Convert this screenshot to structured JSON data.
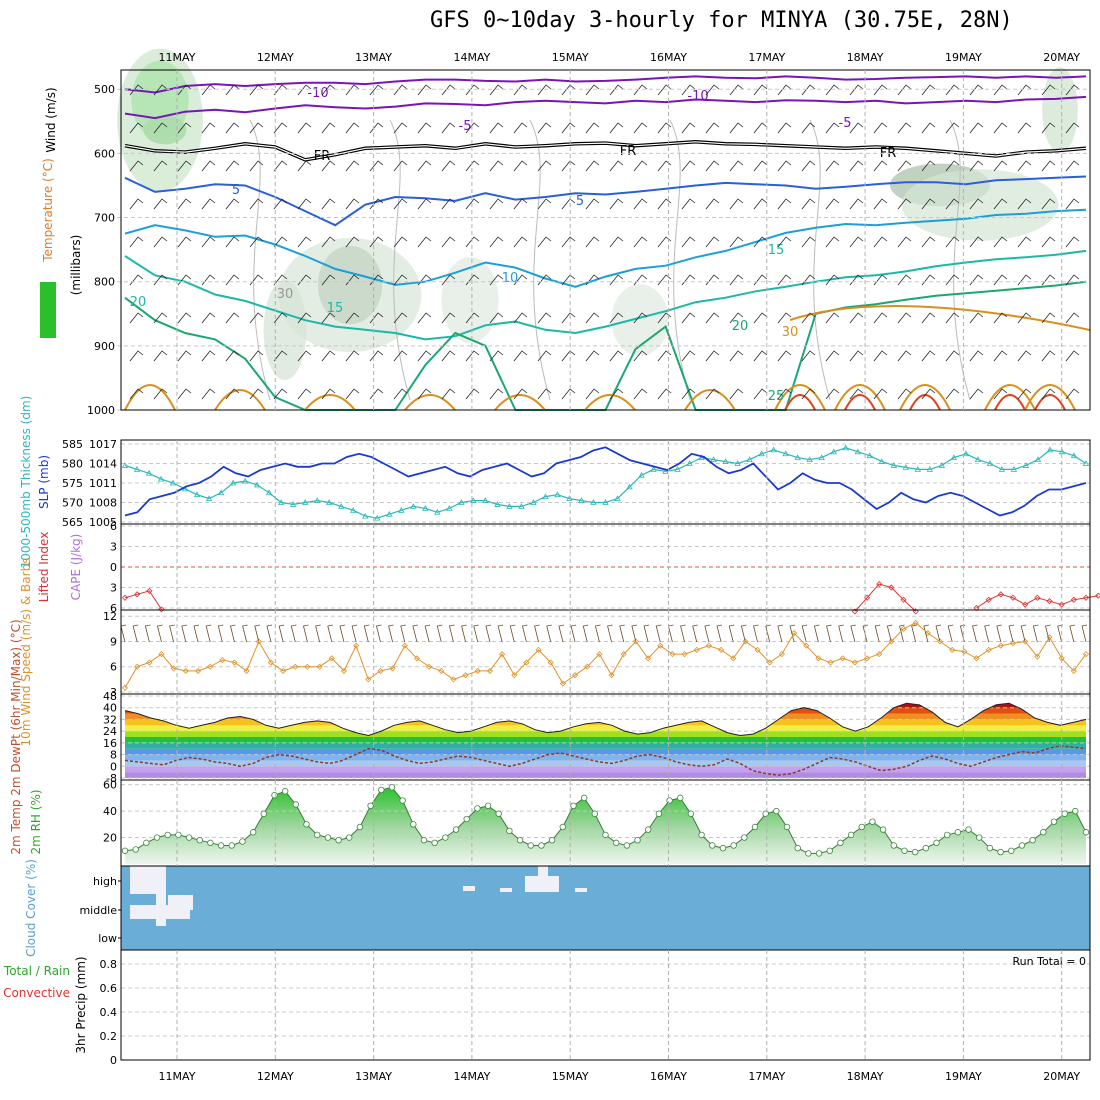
{
  "title": "GFS 0~10day 3-hourly for MINYA (30.75E, 28N)",
  "date_labels": [
    "11MAY",
    "12MAY",
    "13MAY",
    "14MAY",
    "15MAY",
    "16MAY",
    "17MAY",
    "18MAY",
    "19MAY",
    "20MAY"
  ],
  "colors": {
    "temp_10": "#7a14b8",
    "temp_5": "#7a14b8",
    "fr": "#000000",
    "temp5": "#2a5fd8",
    "temp10": "#1aa0d8",
    "temp15": "#1ab8a8",
    "temp20": "#1aa870",
    "temp25": "#d8901a",
    "temp30": "#e0401a",
    "rh": "#2bbf2b",
    "thickness": "#2ab8b8",
    "slp": "#1a3ad0",
    "lifted": "#e03030",
    "wind": "#e0922a",
    "cloud": "#6aadd6",
    "rh2m": "#2aa82a"
  },
  "chart_data": [
    {
      "panel": "upper_air",
      "type": "contour",
      "ylabel_parts": [
        "Wind (m/s)",
        "Temperature (°C)",
        "RH (%)",
        "(millibars)"
      ],
      "y_ticks": [
        500,
        600,
        700,
        800,
        900,
        1000
      ],
      "ylim": [
        470,
        1000
      ],
      "contour_labels": [
        "-10",
        "-10",
        "-5",
        "-5",
        "FR",
        "FR",
        "FR",
        "5",
        "5",
        "10",
        "15",
        "15",
        "20",
        "20",
        "25",
        "30",
        "30"
      ],
      "isotherms": [
        {
          "label": "-10",
          "color": "temp_10",
          "p": [
            500,
            505,
            495,
            492,
            495,
            492,
            490,
            490,
            492,
            488,
            485,
            485,
            487,
            488,
            485,
            488,
            487,
            485,
            482,
            480,
            482,
            483,
            480,
            482,
            485,
            484,
            482,
            481,
            480,
            482,
            480,
            482,
            480
          ]
        },
        {
          "label": "-5",
          "color": "temp_5",
          "p": [
            538,
            545,
            535,
            532,
            536,
            530,
            525,
            528,
            530,
            527,
            522,
            523,
            525,
            520,
            518,
            520,
            522,
            518,
            520,
            516,
            518,
            520,
            517,
            518,
            520,
            518,
            522,
            520,
            518,
            520,
            516,
            515,
            512
          ]
        },
        {
          "label": "FR",
          "color": "fr",
          "p": [
            588,
            596,
            598,
            592,
            585,
            590,
            610,
            602,
            592,
            590,
            588,
            592,
            585,
            590,
            588,
            585,
            584,
            588,
            585,
            582,
            585,
            586,
            588,
            590,
            592,
            590,
            592,
            596,
            600,
            604,
            598,
            596,
            592
          ]
        },
        {
          "label": "5",
          "color": "temp5",
          "p": [
            638,
            660,
            655,
            648,
            650,
            668,
            690,
            712,
            680,
            668,
            670,
            674,
            662,
            672,
            668,
            662,
            664,
            660,
            655,
            650,
            646,
            648,
            650,
            655,
            652,
            648,
            645,
            645,
            648,
            642,
            640,
            638,
            636
          ]
        },
        {
          "label": "10",
          "color": "temp10",
          "p": [
            725,
            712,
            720,
            730,
            728,
            742,
            760,
            780,
            792,
            805,
            800,
            786,
            770,
            778,
            795,
            808,
            792,
            780,
            775,
            762,
            752,
            738,
            724,
            716,
            710,
            712,
            708,
            705,
            702,
            696,
            694,
            690,
            688
          ]
        },
        {
          "label": "15",
          "color": "temp15",
          "p": [
            760,
            790,
            800,
            820,
            830,
            845,
            860,
            870,
            875,
            880,
            890,
            885,
            868,
            862,
            875,
            880,
            870,
            858,
            846,
            832,
            825,
            815,
            808,
            800,
            793,
            790,
            784,
            776,
            770,
            765,
            762,
            758,
            752
          ]
        },
        {
          "label": "20",
          "color": "temp20",
          "p": [
            825,
            860,
            880,
            890,
            920,
            980,
            1000,
            1000,
            1000,
            1000,
            930,
            880,
            900,
            1000,
            1000,
            1000,
            1000,
            905,
            870,
            1000,
            1000,
            1000,
            1000,
            850,
            840,
            835,
            828,
            822,
            818,
            814,
            810,
            806,
            800
          ]
        }
      ],
      "rh_contour_labels": [
        "30",
        "30",
        "30"
      ]
    },
    {
      "panel": "thickness_slp",
      "type": "line",
      "ylabel_left": "1000-500mb Thickness (dm)",
      "ylabel_right": "SLP (mb)",
      "ticks_left": [
        565,
        570,
        575,
        580,
        585
      ],
      "ticks_right": [
        1005,
        1008,
        1011,
        1014,
        1017
      ],
      "ylim_left": [
        565,
        585
      ],
      "ylim_right": [
        1005,
        1017
      ],
      "series": [
        {
          "name": "1000-500mb Thickness (dm)",
          "color": "thickness",
          "values": [
            579.5,
            578.5,
            577.5,
            576,
            575,
            573.5,
            572,
            571,
            572.5,
            575,
            575.5,
            574.5,
            572.5,
            570,
            569.5,
            570,
            570.5,
            570,
            569,
            568,
            566.5,
            566,
            567,
            568,
            569,
            568.5,
            567.5,
            568.5,
            570,
            570.5,
            570.5,
            569.5,
            569,
            569,
            570,
            571.5,
            572,
            571,
            570.5,
            570,
            570,
            571,
            574,
            577,
            578.5,
            578,
            578.5,
            580,
            581.5,
            581,
            580.5,
            580,
            581,
            582.5,
            583.5,
            582.5,
            581.5,
            581,
            581.5,
            583,
            584,
            583,
            582,
            580.5,
            579.5,
            579,
            578.5,
            578.5,
            579.5,
            581.5,
            582.5,
            581,
            580,
            578.5,
            578.5,
            579.5,
            581,
            583.5,
            583,
            582,
            580
          ]
        },
        {
          "name": "SLP (mb)",
          "color": "slp",
          "values": [
            1006,
            1006.5,
            1008.5,
            1009,
            1009.5,
            1010.5,
            1011,
            1012,
            1013.5,
            1012.5,
            1012,
            1013,
            1013.5,
            1014,
            1013.5,
            1013.5,
            1014,
            1014,
            1015,
            1015.5,
            1015,
            1014,
            1013,
            1012,
            1012.5,
            1013,
            1013.5,
            1012.5,
            1012,
            1013,
            1013.5,
            1014,
            1013,
            1012,
            1012.5,
            1014,
            1014.5,
            1015,
            1016,
            1016.5,
            1015.5,
            1014.5,
            1014,
            1013.5,
            1013,
            1014,
            1015.5,
            1015,
            1013.5,
            1012.5,
            1013,
            1014,
            1012,
            1010,
            1011,
            1012.5,
            1011.5,
            1011,
            1011,
            1010,
            1008.5,
            1007,
            1008,
            1009.5,
            1008.5,
            1008,
            1009,
            1009.5,
            1009,
            1008,
            1007,
            1006,
            1006.5,
            1007.5,
            1009,
            1010,
            1010,
            1010.5,
            1011
          ]
        }
      ]
    },
    {
      "panel": "stability",
      "type": "line",
      "ylabel_left": "Lifted Index",
      "ylabel_right": "CAPE (J/kg)",
      "ticks": [
        -6,
        -3,
        0,
        3,
        6
      ],
      "ylim": [
        -6,
        6
      ],
      "series": [
        {
          "name": "Lifted Index",
          "color": "lifted",
          "segments": [
            {
              "x_start": 0,
              "values": [
                4.5,
                4.0,
                3.5,
                6.2
              ]
            },
            {
              "x_start": 60,
              "values": [
                6.5,
                4.5,
                2.5,
                3.0,
                4.8,
                6.5
              ]
            },
            {
              "x_start": 70,
              "values": [
                6.0,
                4.8,
                4.0,
                4.5,
                5.5,
                4.5,
                5.0,
                5.5,
                4.8,
                4.5,
                4.2
              ]
            }
          ]
        }
      ]
    },
    {
      "panel": "wind10m",
      "type": "line",
      "ylabel": "10m Wind Speed (m/s) & Barbs",
      "ticks": [
        3,
        6,
        9,
        12
      ],
      "ylim": [
        3,
        12.5
      ],
      "series": [
        {
          "name": "10m Wind Speed",
          "color": "wind",
          "values": [
            3.5,
            6,
            6.5,
            7.5,
            5.8,
            5.5,
            5.5,
            6,
            6.8,
            6.5,
            5.5,
            9,
            6.5,
            5.5,
            6,
            6,
            6,
            7,
            5.5,
            8.5,
            4.5,
            5.5,
            5.8,
            8.5,
            7,
            6,
            5.5,
            4.5,
            5,
            5.5,
            5.5,
            7.5,
            5,
            6.5,
            8,
            6.5,
            4,
            5,
            6,
            7.5,
            5,
            7.5,
            9,
            7,
            8.5,
            7.5,
            7.5,
            8,
            8.5,
            8,
            7,
            9,
            8,
            6.5,
            7.5,
            10,
            8.5,
            7,
            6.5,
            7,
            6.5,
            7,
            7.5,
            9,
            10.5,
            11.2,
            10,
            9,
            8,
            7.8,
            7,
            8,
            8.5,
            8.8,
            9,
            7.2,
            9.5,
            7,
            5.5,
            7.5
          ]
        }
      ]
    },
    {
      "panel": "temp2m",
      "type": "area",
      "ylabel": "2m Temp 2m DewPt (6hr Min/Max) (°C)",
      "ticks": [
        -8,
        0,
        8,
        16,
        24,
        32,
        40,
        48
      ],
      "ylim": [
        -8,
        48
      ],
      "series": [
        {
          "name": "2m Temp",
          "values": [
            38,
            36,
            33,
            31,
            28,
            26,
            28,
            30,
            33,
            34,
            32,
            28,
            26,
            28,
            30,
            31,
            30,
            26,
            23,
            21,
            24,
            28,
            30,
            31,
            28,
            25,
            23,
            24,
            27,
            30,
            31,
            29,
            25,
            23,
            24,
            27,
            29,
            30,
            28,
            24,
            22,
            23,
            26,
            28,
            30,
            31,
            27,
            23,
            21,
            22,
            26,
            32,
            38,
            40,
            38,
            33,
            27,
            24,
            27,
            33,
            40,
            43,
            42,
            37,
            30,
            27,
            32,
            38,
            42,
            43,
            39,
            33,
            30,
            28,
            30,
            32
          ]
        },
        {
          "name": "2m DewPt",
          "values": [
            4,
            3,
            2,
            1,
            4,
            6,
            5,
            3,
            2,
            0,
            2,
            6,
            8,
            7,
            5,
            3,
            2,
            4,
            8,
            12,
            11,
            7,
            4,
            2,
            3,
            5,
            7,
            6,
            4,
            2,
            0,
            2,
            5,
            8,
            9,
            7,
            5,
            3,
            2,
            4,
            7,
            8,
            6,
            3,
            1,
            0,
            1,
            5,
            2,
            -3,
            -5,
            -6,
            -5,
            -2,
            2,
            6,
            5,
            3,
            0,
            -3,
            -2,
            0,
            4,
            7,
            5,
            2,
            0,
            3,
            6,
            8,
            10,
            9,
            12,
            14,
            13,
            12
          ]
        }
      ]
    },
    {
      "panel": "rh2m",
      "type": "area",
      "ylabel": "2m RH (%)",
      "ticks": [
        20,
        40,
        60
      ],
      "ylim": [
        0,
        62
      ],
      "series": [
        {
          "name": "2m RH",
          "color": "rh2m",
          "values": [
            10,
            11,
            16,
            20,
            22,
            22,
            20,
            18,
            16,
            14,
            14,
            17,
            24,
            38,
            52,
            55,
            45,
            30,
            22,
            20,
            18,
            20,
            28,
            44,
            56,
            58,
            48,
            30,
            18,
            16,
            20,
            26,
            34,
            42,
            44,
            38,
            25,
            18,
            14,
            14,
            18,
            28,
            44,
            50,
            38,
            22,
            16,
            14,
            18,
            26,
            38,
            48,
            50,
            38,
            22,
            14,
            12,
            14,
            20,
            28,
            38,
            40,
            28,
            12,
            8,
            8,
            10,
            16,
            22,
            28,
            32,
            26,
            14,
            10,
            9,
            12,
            16,
            22,
            24,
            26,
            20,
            12,
            9,
            10,
            14,
            18,
            24,
            32,
            38,
            40,
            24
          ]
        }
      ]
    },
    {
      "panel": "cloud",
      "type": "heatmap",
      "ylabel": "Cloud Cover (%)",
      "levels": [
        "high",
        "middle",
        "low"
      ]
    },
    {
      "panel": "precip",
      "type": "bar",
      "ylabel_parts": [
        "Total / Rain",
        "Convective",
        "3hr Precip (mm)"
      ],
      "ticks": [
        0,
        0.2,
        0.4,
        0.6,
        0.8
      ],
      "ylim": [
        0,
        0.9
      ],
      "values": [],
      "run_total": "Run Total = 0"
    }
  ]
}
